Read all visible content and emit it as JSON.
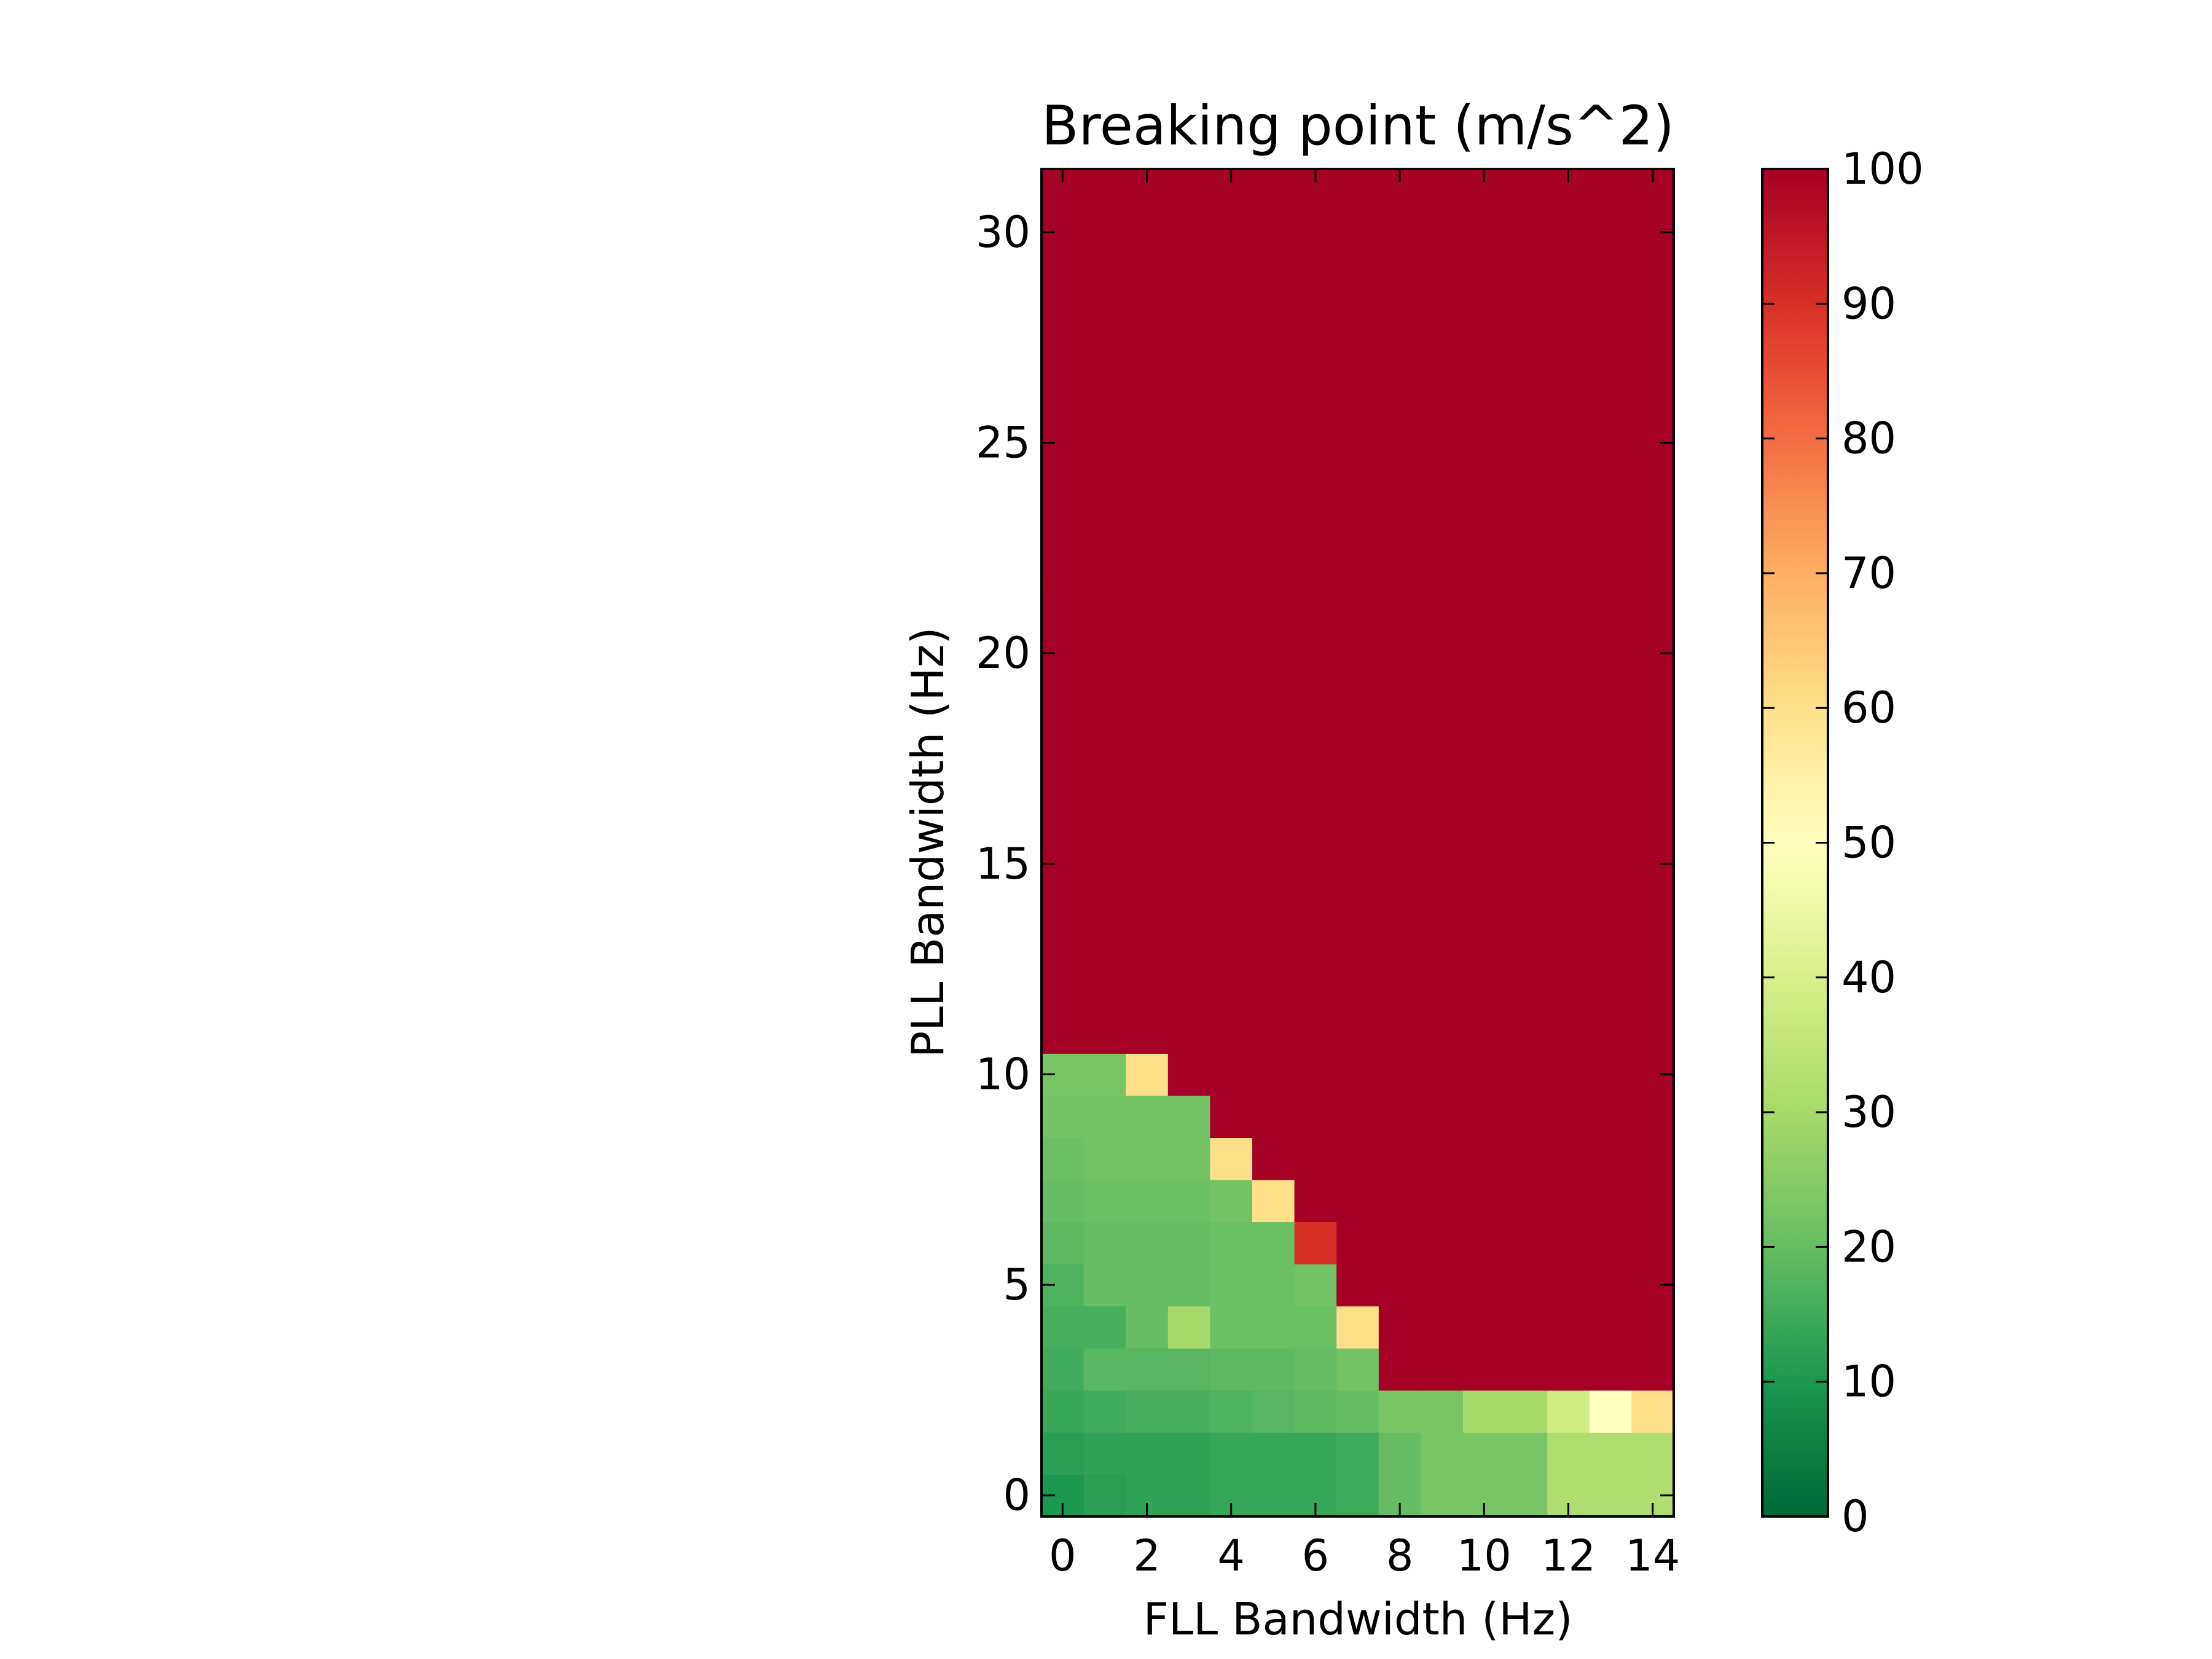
{
  "chart_data": {
    "type": "heatmap",
    "title": "Breaking point (m/s^2)",
    "xlabel": "FLL Bandwidth (Hz)",
    "ylabel": "PLL Bandwidth (Hz)",
    "x": [
      0,
      1,
      2,
      3,
      4,
      5,
      6,
      7,
      8,
      9,
      10,
      11,
      12,
      13,
      14
    ],
    "y_start": 0,
    "y_end": 31,
    "xlim": [
      -0.5,
      14.5
    ],
    "ylim": [
      -0.5,
      31.5
    ],
    "x_ticks": [
      0,
      2,
      4,
      6,
      8,
      10,
      12,
      14
    ],
    "y_ticks": [
      0,
      5,
      10,
      15,
      20,
      25,
      30
    ],
    "colorbar": {
      "colormap": "RdYlGn_r",
      "min": 0,
      "max": 100,
      "ticks": [
        0,
        10,
        20,
        30,
        40,
        50,
        60,
        70,
        80,
        90,
        100
      ]
    },
    "values": [
      [
        10,
        12,
        13,
        13,
        14,
        14,
        14,
        15,
        20,
        23,
        23,
        23,
        32,
        32,
        32
      ],
      [
        12,
        13,
        13,
        13,
        14,
        14,
        14,
        15,
        20,
        23,
        23,
        23,
        32,
        32,
        32
      ],
      [
        14,
        15,
        16,
        16,
        17,
        18,
        19,
        20,
        23,
        23,
        30,
        30,
        38,
        50,
        60
      ],
      [
        15,
        18,
        18,
        18,
        19,
        19,
        20,
        22,
        100,
        100,
        100,
        100,
        100,
        100,
        100
      ],
      [
        16,
        16,
        20,
        30,
        21,
        21,
        21,
        60,
        100,
        100,
        100,
        100,
        100,
        100,
        100
      ],
      [
        17,
        20,
        20,
        20,
        21,
        21,
        22,
        100,
        100,
        100,
        100,
        100,
        100,
        100,
        100
      ],
      [
        19,
        20,
        20,
        20,
        21,
        21,
        90,
        100,
        100,
        100,
        100,
        100,
        100,
        100,
        100
      ],
      [
        20,
        21,
        21,
        21,
        22,
        60,
        100,
        100,
        100,
        100,
        100,
        100,
        100,
        100,
        100
      ],
      [
        21,
        22,
        22,
        22,
        60,
        100,
        100,
        100,
        100,
        100,
        100,
        100,
        100,
        100,
        100
      ],
      [
        22,
        22,
        22,
        22,
        100,
        100,
        100,
        100,
        100,
        100,
        100,
        100,
        100,
        100,
        100
      ],
      [
        23,
        23,
        60,
        100,
        100,
        100,
        100,
        100,
        100,
        100,
        100,
        100,
        100,
        100,
        100
      ]
    ],
    "fill_value": 100
  }
}
